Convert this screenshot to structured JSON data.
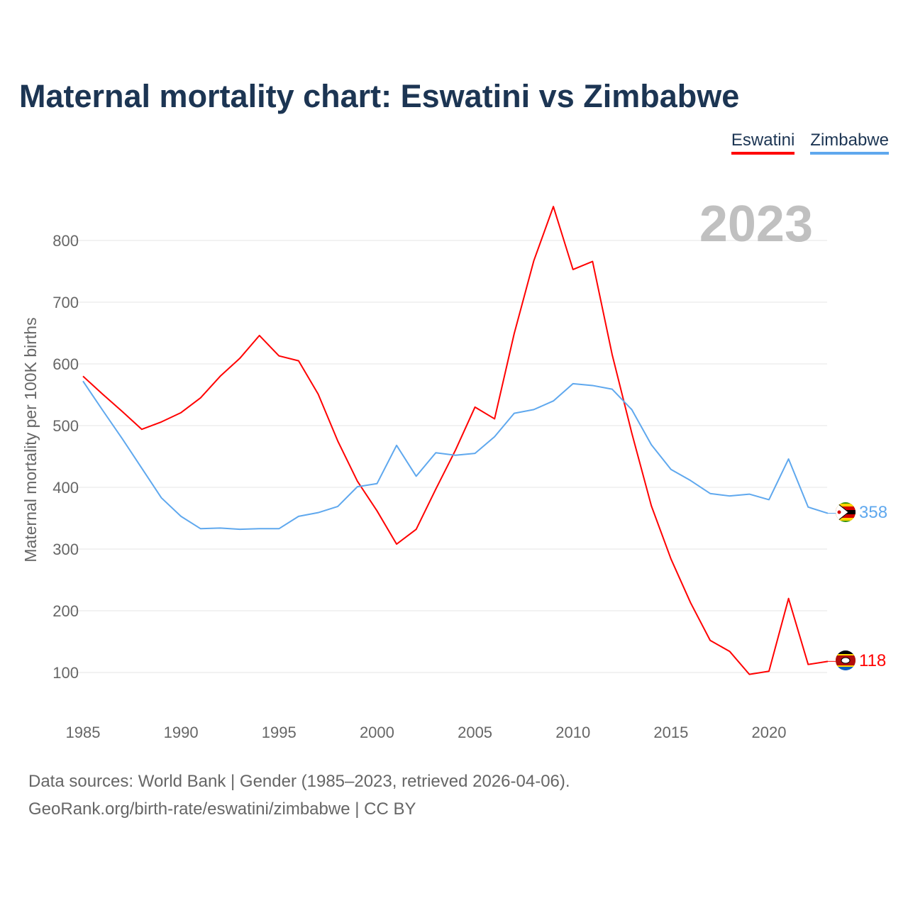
{
  "title": "Maternal mortality chart: Eswatini vs Zimbabwe",
  "source_line1": "Data sources: World Bank | Gender (1985–2023, retrieved 2026-04-06).",
  "source_line2": "GeoRank.org/birth-rate/eswatini/zimbabwe | CC BY",
  "chart_data": {
    "type": "line",
    "title": "Maternal mortality chart: Eswatini vs Zimbabwe",
    "xlabel": "",
    "ylabel": "Maternal mortality per 100K births",
    "year_label": "2023",
    "xlim": [
      1985,
      2023
    ],
    "ylim": [
      0,
      900
    ],
    "xticks": [
      1985,
      1990,
      1995,
      2000,
      2005,
      2010,
      2015,
      2020
    ],
    "yticks": [
      100,
      200,
      300,
      400,
      500,
      600,
      700,
      800
    ],
    "grid": true,
    "legend_position": "top-right",
    "x": [
      1985,
      1986,
      1987,
      1988,
      1989,
      1990,
      1991,
      1992,
      1993,
      1994,
      1995,
      1996,
      1997,
      1998,
      1999,
      2000,
      2001,
      2002,
      2003,
      2004,
      2005,
      2006,
      2007,
      2008,
      2009,
      2010,
      2011,
      2012,
      2013,
      2014,
      2015,
      2016,
      2017,
      2018,
      2019,
      2020,
      2021,
      2022,
      2023
    ],
    "series": [
      {
        "name": "Eswatini",
        "color": "#ff0000",
        "end_label": "118",
        "values": [
          580,
          551,
          523,
          494,
          506,
          521,
          545,
          580,
          609,
          646,
          613,
          605,
          551,
          475,
          410,
          362,
          308,
          332,
          397,
          460,
          530,
          511,
          649,
          767,
          855,
          753,
          766,
          615,
          488,
          370,
          284,
          213,
          152,
          134,
          97,
          102,
          220,
          113,
          118
        ]
      },
      {
        "name": "Zimbabwe",
        "color": "#5fa8ee",
        "end_label": "358",
        "values": [
          572,
          525,
          479,
          431,
          383,
          353,
          333,
          334,
          332,
          333,
          333,
          353,
          359,
          369,
          401,
          406,
          468,
          418,
          456,
          452,
          455,
          482,
          520,
          526,
          540,
          568,
          565,
          559,
          526,
          469,
          429,
          411,
          390,
          386,
          389,
          380,
          446,
          368,
          358
        ]
      }
    ]
  }
}
